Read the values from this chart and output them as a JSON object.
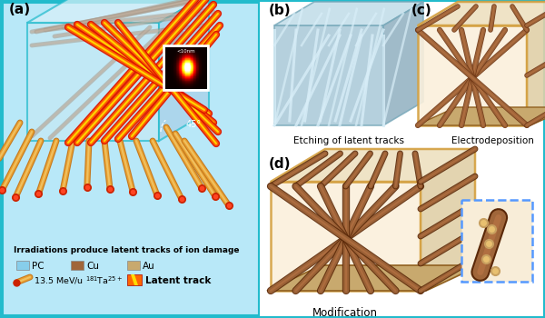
{
  "bg_color": "#FFFFFF",
  "outer_border_color": "#22BBCC",
  "panel_a_bg": "#B8E8F8",
  "panel_a_border": "#22BBCC",
  "pc_color": "#87CEEB",
  "cu_color": "#A0663A",
  "au_color": "#C8A96E",
  "au_base_color": "#C8A060",
  "orange_rod": "#E8A030",
  "orange_rod_light": "#F0C060",
  "red_tip": "#CC2200",
  "gray_rod": "#A89888",
  "track_red": "#DD1100",
  "track_orange": "#FF6600",
  "track_yellow": "#FFDD00",
  "blue_b_cube_front": "#A8C8D8",
  "blue_b_cube_top": "#C0D8E8",
  "blue_b_cube_right": "#90B8C8",
  "blue_b_track": "#D0E8F0",
  "au_cube_border": "#D4A040",
  "au_cube_front": "#F8F0E0",
  "au_cube_top": "#EDE0C8",
  "au_cube_right": "#E0D0B8",
  "inset_border": "#5599FF",
  "white": "#FFFFFF",
  "legend_text": "Irradiations produce latent tracks of ion damage",
  "subtitle_b": "Etching of latent tracks",
  "subtitle_c": "Electrodeposition",
  "subtitle_d": "Modification"
}
